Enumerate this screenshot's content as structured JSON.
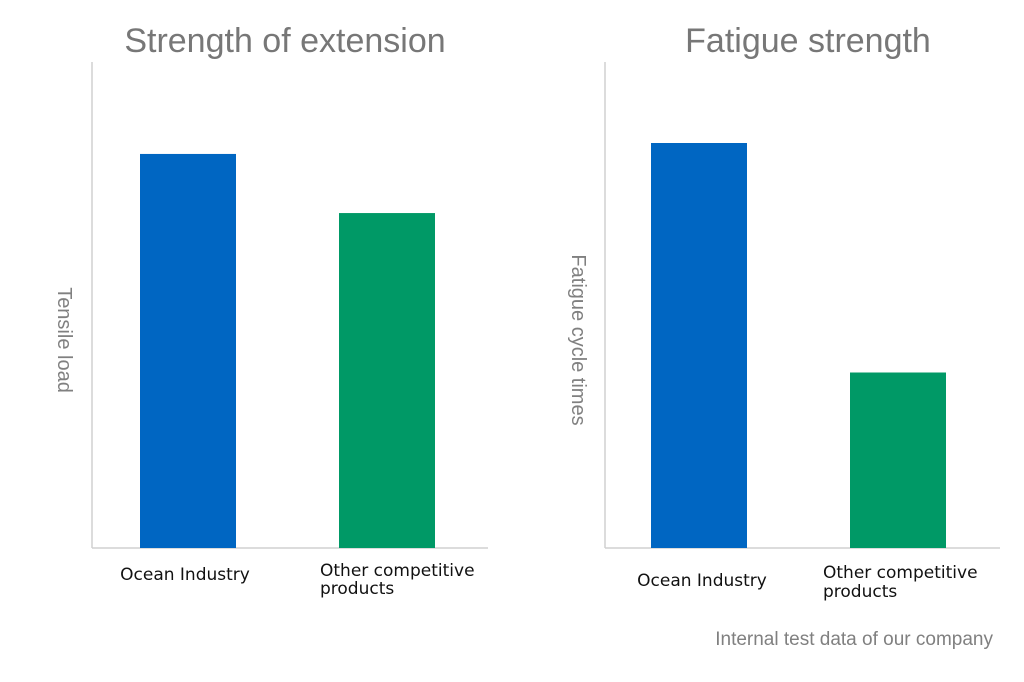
{
  "chart_data": [
    {
      "type": "bar",
      "title": "Strength of extension",
      "xlabel": "",
      "ylabel": "Tensile load",
      "categories": [
        "Ocean Industry",
        "Other competitive products"
      ],
      "values": [
        3.0,
        2.55
      ],
      "colors": [
        "#0066c2",
        "#009966"
      ],
      "ylim": [
        0,
        3.7
      ],
      "y_ticks_shown": false,
      "grid": false
    },
    {
      "type": "bar",
      "title": "Fatigue strength",
      "xlabel": "",
      "ylabel": "Fatigue cycle times",
      "categories": [
        "Ocean Industry",
        "Other competitive products"
      ],
      "values": [
        3.0,
        1.3
      ],
      "colors": [
        "#0066c2",
        "#009966"
      ],
      "ylim": [
        0,
        3.6
      ],
      "y_ticks_shown": false,
      "grid": false
    }
  ],
  "footnote": "Internal test data of our company"
}
